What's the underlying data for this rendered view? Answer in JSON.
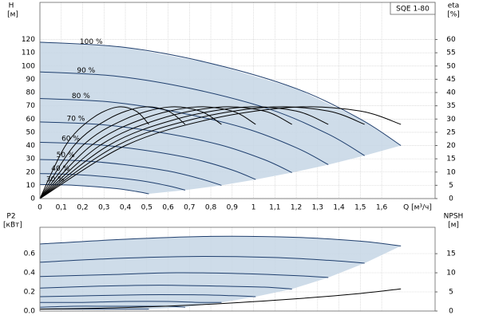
{
  "charts": [
    {
      "type": "line",
      "title": "SQE 1-80",
      "xlabel": "Q [м³/ч]",
      "ylabel": "H",
      "yunit": "[м]",
      "y2label": "eta",
      "y2unit": "[%]",
      "xlim": [
        0,
        1.85
      ],
      "xticks": [
        0,
        {
          "value": 0.1,
          "label": "0,1"
        },
        {
          "value": 0.2,
          "label": "0,2"
        },
        {
          "value": 0.3,
          "label": "0,3"
        },
        {
          "value": 0.4,
          "label": "0,4"
        },
        {
          "value": 0.5,
          "label": "0,5"
        },
        {
          "value": 0.6,
          "label": "0,6"
        },
        {
          "value": 0.7,
          "label": "0,7"
        },
        {
          "value": 0.8,
          "label": "0,8"
        },
        {
          "value": 0.9,
          "label": "0,9"
        },
        1,
        {
          "value": 1.1,
          "label": "1,1"
        },
        {
          "value": 1.2,
          "label": "1,2"
        },
        {
          "value": 1.3,
          "label": "1,3"
        },
        {
          "value": 1.4,
          "label": "1,4"
        },
        {
          "value": 1.5,
          "label": "1,5"
        },
        {
          "value": 1.6,
          "label": "1,6"
        }
      ],
      "ylim": [
        0,
        148
      ],
      "yticks": [
        0,
        10,
        20,
        30,
        40,
        50,
        60,
        70,
        80,
        90,
        100,
        110,
        120
      ],
      "y2lim": [
        0,
        74
      ],
      "y2ticks": [
        0,
        5,
        10,
        15,
        20,
        25,
        30,
        35,
        40,
        45,
        50,
        55,
        60
      ],
      "grid": true,
      "area_color": "#c6d6e5",
      "series": [
        {
          "name": "100 %",
          "color": "#1f3f6e",
          "x": [
            0,
            0.4,
            0.8,
            1.2,
            1.5,
            1.69
          ],
          "values": [
            118,
            114,
            102,
            83,
            60,
            40
          ]
        },
        {
          "name": "90 %",
          "color": "#1f3f6e",
          "x": [
            0,
            0.36,
            0.72,
            1.08,
            1.35,
            1.52
          ],
          "values": [
            95.6,
            92.3,
            82.6,
            67.2,
            48.6,
            32.4
          ]
        },
        {
          "name": "80 %",
          "color": "#1f3f6e",
          "x": [
            0,
            0.32,
            0.64,
            0.96,
            1.2,
            1.35
          ],
          "values": [
            75.5,
            73,
            65.3,
            53.1,
            38.4,
            25.6
          ]
        },
        {
          "name": "70 %",
          "color": "#1f3f6e",
          "x": [
            0,
            0.28,
            0.56,
            0.84,
            1.05,
            1.18
          ],
          "values": [
            57.8,
            55.9,
            50,
            40.7,
            29.4,
            19.6
          ]
        },
        {
          "name": "60 %",
          "color": "#1f3f6e",
          "x": [
            0,
            0.24,
            0.48,
            0.72,
            0.9,
            1.01
          ],
          "values": [
            42.5,
            41,
            36.7,
            29.9,
            21.6,
            14.4
          ]
        },
        {
          "name": "50 %",
          "color": "#1f3f6e",
          "x": [
            0,
            0.2,
            0.4,
            0.6,
            0.75,
            0.85
          ],
          "values": [
            29.5,
            28.5,
            25.5,
            20.8,
            15,
            10
          ]
        },
        {
          "name": "40 %",
          "color": "#1f3f6e",
          "x": [
            0,
            0.16,
            0.32,
            0.48,
            0.6,
            0.68
          ],
          "values": [
            18.9,
            18.2,
            16.3,
            13.3,
            9.6,
            6.4
          ]
        },
        {
          "name": "30 %",
          "color": "#1f3f6e",
          "x": [
            0,
            0.12,
            0.24,
            0.36,
            0.45,
            0.51
          ],
          "values": [
            10.6,
            10.3,
            9.2,
            7.5,
            5.4,
            3.6
          ]
        },
        {
          "color": "#000000",
          "axis": "y2",
          "x": [
            0,
            0.4,
            0.8,
            1.2,
            1.5,
            1.69
          ],
          "values": [
            0,
            20,
            30,
            34.5,
            33,
            28
          ]
        },
        {
          "color": "#000000",
          "axis": "y2",
          "x": [
            0,
            0.36,
            0.72,
            1.08,
            1.35,
            1.52
          ],
          "values": [
            0,
            20,
            30,
            34.5,
            33,
            28
          ]
        },
        {
          "color": "#000000",
          "axis": "y2",
          "x": [
            0,
            0.32,
            0.64,
            0.96,
            1.2,
            1.35
          ],
          "values": [
            0,
            20,
            30,
            34.5,
            33,
            28
          ]
        },
        {
          "color": "#000000",
          "axis": "y2",
          "x": [
            0,
            0.28,
            0.56,
            0.84,
            1.05,
            1.18
          ],
          "values": [
            0,
            20,
            30,
            34.5,
            33,
            28
          ]
        },
        {
          "color": "#000000",
          "axis": "y2",
          "x": [
            0,
            0.24,
            0.48,
            0.72,
            0.9,
            1.01
          ],
          "values": [
            0,
            20,
            30,
            34.5,
            33,
            28
          ]
        },
        {
          "color": "#000000",
          "axis": "y2",
          "x": [
            0,
            0.2,
            0.4,
            0.6,
            0.75,
            0.85
          ],
          "values": [
            0,
            20,
            30,
            34.5,
            33,
            28
          ]
        },
        {
          "color": "#000000",
          "axis": "y2",
          "x": [
            0,
            0.16,
            0.32,
            0.48,
            0.6,
            0.68
          ],
          "values": [
            0,
            20,
            30,
            34.5,
            33,
            28
          ]
        },
        {
          "color": "#000000",
          "axis": "y2",
          "x": [
            0,
            0.12,
            0.24,
            0.36,
            0.45,
            0.51
          ],
          "values": [
            0,
            20,
            30,
            34.5,
            33,
            28
          ]
        }
      ]
    },
    {
      "type": "line",
      "ylabel": "P2",
      "yunit": "[кВт]",
      "y2label": "NPSH",
      "y2unit": "[м]",
      "xlim": [
        0,
        1.85
      ],
      "xticks": [
        0,
        0.1,
        0.2,
        0.3,
        0.4,
        0.5,
        0.6,
        0.7,
        0.8,
        0.9,
        1,
        1.1,
        1.2,
        1.3,
        1.4,
        1.5,
        1.6
      ],
      "ylim": [
        0,
        0.875
      ],
      "yticks": [
        {
          "value": 0,
          "label": "0.0"
        },
        {
          "value": 0.2,
          "label": "0.2"
        },
        {
          "value": 0.4,
          "label": "0.4"
        },
        {
          "value": 0.6,
          "label": "0.6"
        }
      ],
      "y2lim": [
        0,
        21.9
      ],
      "y2ticks": [
        0,
        5,
        10,
        15
      ],
      "grid": true,
      "area_color": "#c6d6e5",
      "series": [
        {
          "color": "#1f3f6e",
          "x": [
            0,
            0.4,
            0.8,
            1.2,
            1.5,
            1.69
          ],
          "values": [
            0.7,
            0.75,
            0.78,
            0.77,
            0.73,
            0.68
          ]
        },
        {
          "color": "#1f3f6e",
          "x": [
            0,
            0.36,
            0.72,
            1.08,
            1.35,
            1.52
          ],
          "values": [
            0.51,
            0.55,
            0.57,
            0.56,
            0.53,
            0.5
          ]
        },
        {
          "color": "#1f3f6e",
          "x": [
            0,
            0.32,
            0.64,
            0.96,
            1.2,
            1.35
          ],
          "values": [
            0.36,
            0.38,
            0.4,
            0.39,
            0.37,
            0.35
          ]
        },
        {
          "color": "#1f3f6e",
          "x": [
            0,
            0.28,
            0.56,
            0.84,
            1.05,
            1.18
          ],
          "values": [
            0.24,
            0.26,
            0.27,
            0.26,
            0.25,
            0.23
          ]
        },
        {
          "color": "#1f3f6e",
          "x": [
            0,
            0.24,
            0.48,
            0.72,
            0.9,
            1.01
          ],
          "values": [
            0.15,
            0.16,
            0.17,
            0.17,
            0.16,
            0.15
          ]
        },
        {
          "color": "#1f3f6e",
          "x": [
            0,
            0.2,
            0.4,
            0.6,
            0.75,
            0.85
          ],
          "values": [
            0.09,
            0.09,
            0.1,
            0.1,
            0.09,
            0.09
          ]
        },
        {
          "color": "#1f3f6e",
          "x": [
            0,
            0.16,
            0.32,
            0.48,
            0.6,
            0.68
          ],
          "values": [
            0.04,
            0.05,
            0.05,
            0.05,
            0.05,
            0.04
          ]
        },
        {
          "color": "#1f3f6e",
          "x": [
            0,
            0.12,
            0.24,
            0.36,
            0.45,
            0.51
          ],
          "values": [
            0.02,
            0.02,
            0.02,
            0.02,
            0.02,
            0.02
          ]
        },
        {
          "color": "#000000",
          "axis": "y2",
          "x": [
            0,
            0.4,
            0.8,
            1.2,
            1.5,
            1.69
          ],
          "values": [
            0.5,
            0.9,
            1.8,
            3.2,
            4.6,
            5.8
          ]
        }
      ]
    }
  ]
}
